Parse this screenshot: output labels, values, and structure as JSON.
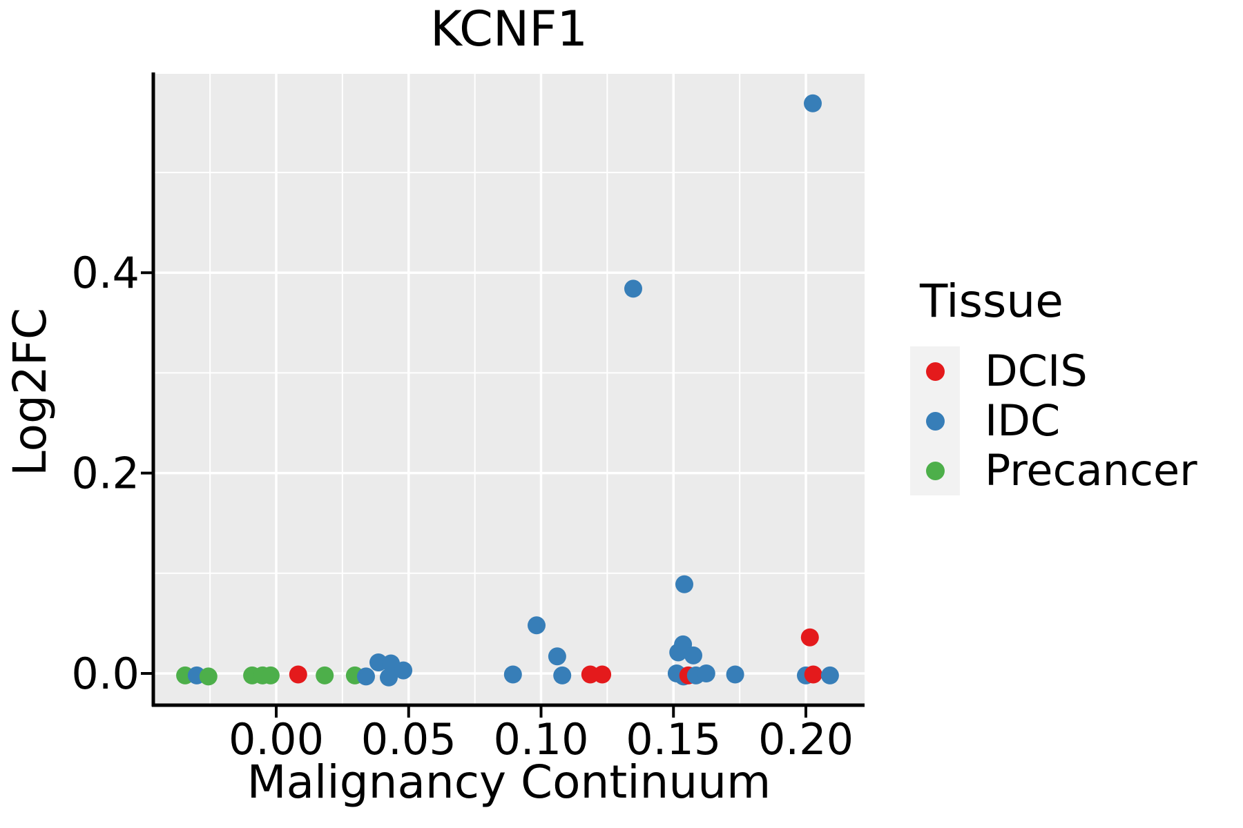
{
  "chart_data": {
    "type": "scatter",
    "title": "KCNF1",
    "xlabel": "Malignancy Continuum",
    "ylabel": "Log2FC",
    "xlim": [
      -0.0464,
      0.2222
    ],
    "ylim": [
      -0.0317,
      0.5985
    ],
    "grid": "major+minor",
    "x_ticks": [
      {
        "v": 0.0,
        "label": "0.00"
      },
      {
        "v": 0.05,
        "label": "0.05"
      },
      {
        "v": 0.1,
        "label": "0.10"
      },
      {
        "v": 0.15,
        "label": "0.15"
      },
      {
        "v": 0.2,
        "label": "0.20"
      }
    ],
    "y_ticks": [
      {
        "v": 0.0,
        "label": "0.0"
      },
      {
        "v": 0.2,
        "label": "0.2"
      },
      {
        "v": 0.4,
        "label": "0.4"
      }
    ],
    "x_minor": [
      -0.025,
      0.025,
      0.075,
      0.125,
      0.175
    ],
    "y_minor": [
      0.1,
      0.3,
      0.5
    ],
    "legend": {
      "title": "Tissue",
      "position": "right",
      "items": [
        {
          "label": "DCIS",
          "color": "#e41a1c"
        },
        {
          "label": "IDC",
          "color": "#377eb8"
        },
        {
          "label": "Precancer",
          "color": "#4daf4a"
        }
      ]
    },
    "points": [
      {
        "tissue": "Precancer",
        "x": -0.0344,
        "y": -0.002
      },
      {
        "tissue": "IDC",
        "x": -0.03,
        "y": -0.002
      },
      {
        "tissue": "Precancer",
        "x": -0.0256,
        "y": -0.003
      },
      {
        "tissue": "Precancer",
        "x": -0.0091,
        "y": -0.002
      },
      {
        "tissue": "Precancer",
        "x": -0.0052,
        "y": -0.002
      },
      {
        "tissue": "Precancer",
        "x": -0.0021,
        "y": -0.002
      },
      {
        "tissue": "DCIS",
        "x": 0.0083,
        "y": -0.001
      },
      {
        "tissue": "Precancer",
        "x": 0.0183,
        "y": -0.002
      },
      {
        "tissue": "Precancer",
        "x": 0.0297,
        "y": -0.002
      },
      {
        "tissue": "IDC",
        "x": 0.0339,
        "y": -0.003
      },
      {
        "tissue": "IDC",
        "x": 0.0386,
        "y": 0.011
      },
      {
        "tissue": "IDC",
        "x": 0.0425,
        "y": -0.004
      },
      {
        "tissue": "IDC",
        "x": 0.0433,
        "y": 0.01
      },
      {
        "tissue": "IDC",
        "x": 0.048,
        "y": 0.003
      },
      {
        "tissue": "IDC",
        "x": 0.0894,
        "y": -0.001
      },
      {
        "tissue": "IDC",
        "x": 0.0983,
        "y": 0.048
      },
      {
        "tissue": "IDC",
        "x": 0.1061,
        "y": 0.017
      },
      {
        "tissue": "IDC",
        "x": 0.108,
        "y": -0.002
      },
      {
        "tissue": "DCIS",
        "x": 0.1186,
        "y": -0.001
      },
      {
        "tissue": "DCIS",
        "x": 0.1231,
        "y": -0.001
      },
      {
        "tissue": "IDC",
        "x": 0.1348,
        "y": 0.384
      },
      {
        "tissue": "IDC",
        "x": 0.1512,
        "y": 0.0
      },
      {
        "tissue": "IDC",
        "x": 0.1518,
        "y": 0.021
      },
      {
        "tissue": "IDC",
        "x": 0.1536,
        "y": 0.029
      },
      {
        "tissue": "IDC",
        "x": 0.1538,
        "y": -0.003
      },
      {
        "tissue": "IDC",
        "x": 0.1541,
        "y": 0.089
      },
      {
        "tissue": "DCIS",
        "x": 0.1556,
        "y": -0.002
      },
      {
        "tissue": "IDC",
        "x": 0.1575,
        "y": 0.018
      },
      {
        "tissue": "IDC",
        "x": 0.1585,
        "y": -0.002
      },
      {
        "tissue": "IDC",
        "x": 0.1624,
        "y": 0.0
      },
      {
        "tissue": "IDC",
        "x": 0.1733,
        "y": -0.001
      },
      {
        "tissue": "IDC",
        "x": 0.2,
        "y": -0.002
      },
      {
        "tissue": "DCIS",
        "x": 0.2015,
        "y": 0.036
      },
      {
        "tissue": "IDC",
        "x": 0.2026,
        "y": 0.569
      },
      {
        "tissue": "DCIS",
        "x": 0.2028,
        "y": -0.001
      },
      {
        "tissue": "IDC",
        "x": 0.2091,
        "y": -0.002
      }
    ],
    "style": {
      "panel_bg": "#ebebeb",
      "grid_color": "#ffffff",
      "axis_color": "#000000",
      "text_color": "#000000",
      "legend_key_bg": "#f2f2f2",
      "point_radius": 13
    }
  }
}
